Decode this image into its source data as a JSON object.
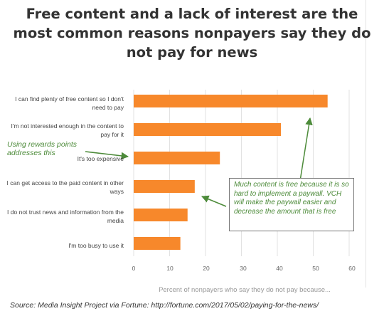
{
  "title": {
    "line1": "Free content and a lack of interest are the",
    "line2": "most common reasons nonpayers say they do",
    "line3": "not pay for news"
  },
  "chart_data": {
    "type": "bar",
    "orientation": "horizontal",
    "categories": [
      "I can find plenty of free content so I don't need to pay",
      "I'm not interested enough in the content to pay for it",
      "It's too expensive",
      "I can get access to the paid content in other ways",
      "I do not trust news and information from the media",
      "I'm too busy to use it"
    ],
    "values": [
      54,
      41,
      24,
      17,
      15,
      13
    ],
    "xlim": [
      0,
      60
    ],
    "xticks": [
      0,
      10,
      20,
      30,
      40,
      50,
      60
    ],
    "xlabel": "Percent of nonpayers who say they do not pay because...",
    "bar_color": "#f7882b",
    "grid": true
  },
  "annotations": {
    "left_note": "Using rewards points addresses this",
    "box_note": "Much content is free because it is so hard to implement a paywall. VCH will make the paywall easier and decrease the amount that is free",
    "color": "#4d8b3a"
  },
  "source": "Source: Media Insight Project via Fortune: http://fortune.com/2017/05/02/paying-for-the-news/"
}
